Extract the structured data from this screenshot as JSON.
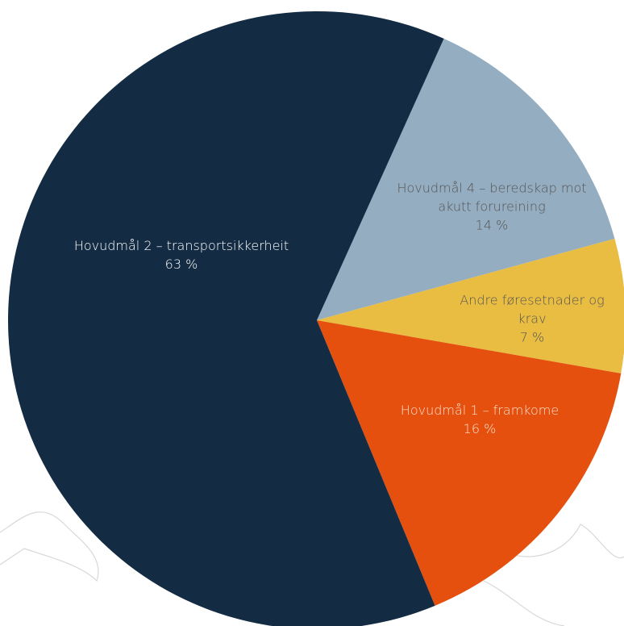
{
  "chart_data": {
    "type": "pie",
    "categories": [
      "Hovudmål 4 – beredskap mot akutt forureining",
      "Andre føresetnader og krav",
      "Hovudmål 1 – framkome",
      "Hovudmål 2 – transportsikkerheit"
    ],
    "values": [
      14,
      7,
      16,
      63
    ],
    "value_labels": [
      "14 %",
      "7 %",
      "16 %",
      "63 %"
    ],
    "colors": [
      "#94adc1",
      "#e8bd42",
      "#e5500f",
      "#132c43"
    ]
  }
}
